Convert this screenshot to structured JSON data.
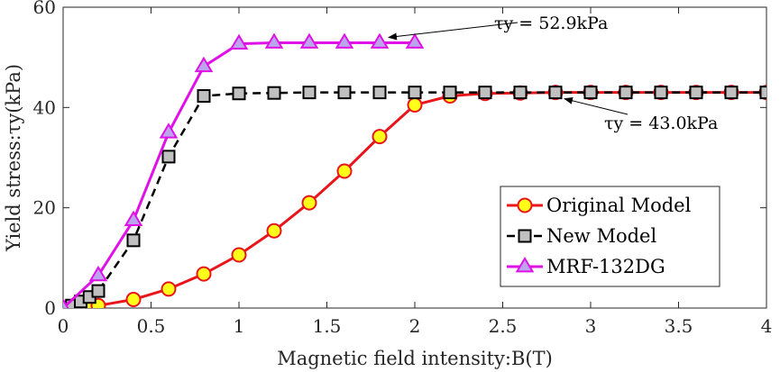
{
  "chart_data": {
    "type": "line",
    "title": "",
    "xlabel": "Magnetic field intensity:B(T)",
    "ylabel": "Yield stress:τy(kPa)",
    "xlim": [
      0,
      4
    ],
    "ylim": [
      0,
      60
    ],
    "xticks": [
      0,
      0.5,
      1,
      1.5,
      2,
      2.5,
      3,
      3.5,
      4
    ],
    "xtick_labels": [
      "0",
      "0.5",
      "1",
      "1.5",
      "2",
      "2.5",
      "3",
      "3.5",
      "4"
    ],
    "yticks": [
      0,
      20,
      40,
      60
    ],
    "ytick_labels": [
      "0",
      "20",
      "40",
      "60"
    ],
    "grid": false,
    "legend": {
      "position": "lower-right",
      "entries": [
        "Original Model",
        "New Model",
        "MRF-132DG"
      ]
    },
    "series": [
      {
        "name": "Original Model",
        "marker": "circle",
        "line_style": "solid",
        "line_color": "#e8161b",
        "marker_fill": "#ffff1a",
        "marker_edge": "#e8161b",
        "x": [
          0,
          0.05,
          0.1,
          0.15,
          0.2,
          0.4,
          0.6,
          0.8,
          1.0,
          1.2,
          1.4,
          1.6,
          1.8,
          2.0,
          2.2,
          2.4,
          2.6,
          2.8,
          3.0,
          3.2,
          3.4,
          3.6,
          3.8,
          4.0
        ],
        "y": [
          0,
          0.1,
          0.2,
          0.3,
          0.5,
          1.7,
          3.8,
          6.8,
          10.6,
          15.4,
          21.0,
          27.3,
          34.2,
          40.5,
          42.3,
          42.8,
          42.9,
          43.0,
          43.0,
          43.0,
          43.0,
          43.0,
          43.0,
          43.0
        ]
      },
      {
        "name": "New Model",
        "marker": "square",
        "line_style": "dashed",
        "line_color": "#000000",
        "marker_fill": "#c0c0c0",
        "marker_edge": "#000000",
        "x": [
          0,
          0.05,
          0.1,
          0.15,
          0.2,
          0.4,
          0.6,
          0.8,
          1.0,
          1.2,
          1.4,
          1.6,
          1.8,
          2.0,
          2.2,
          2.4,
          2.6,
          2.8,
          3.0,
          3.2,
          3.4,
          3.6,
          3.8,
          4.0
        ],
        "y": [
          0,
          0.5,
          1.3,
          2.2,
          3.4,
          13.5,
          30.2,
          42.3,
          42.8,
          42.9,
          43.0,
          43.0,
          43.0,
          43.0,
          43.0,
          43.0,
          43.0,
          43.0,
          43.0,
          43.0,
          43.0,
          43.0,
          43.0,
          43.0
        ]
      },
      {
        "name": "MRF-132DG",
        "marker": "triangle",
        "line_style": "solid",
        "line_color": "#e011e6",
        "marker_fill": "#bba6ee",
        "marker_edge": "#e011e6",
        "x": [
          0,
          0.2,
          0.4,
          0.6,
          0.8,
          1.0,
          1.2,
          1.4,
          1.6,
          1.8,
          2.0
        ],
        "y": [
          0,
          6.5,
          17.5,
          35.0,
          48.2,
          52.7,
          52.9,
          52.9,
          52.9,
          52.9,
          52.9
        ]
      }
    ],
    "annotations": [
      {
        "text": "τy = 52.9kPa",
        "x": 1.8,
        "y": 52.9
      },
      {
        "text": "τy = 43.0kPa",
        "x": 2.8,
        "y": 43.0
      }
    ]
  }
}
